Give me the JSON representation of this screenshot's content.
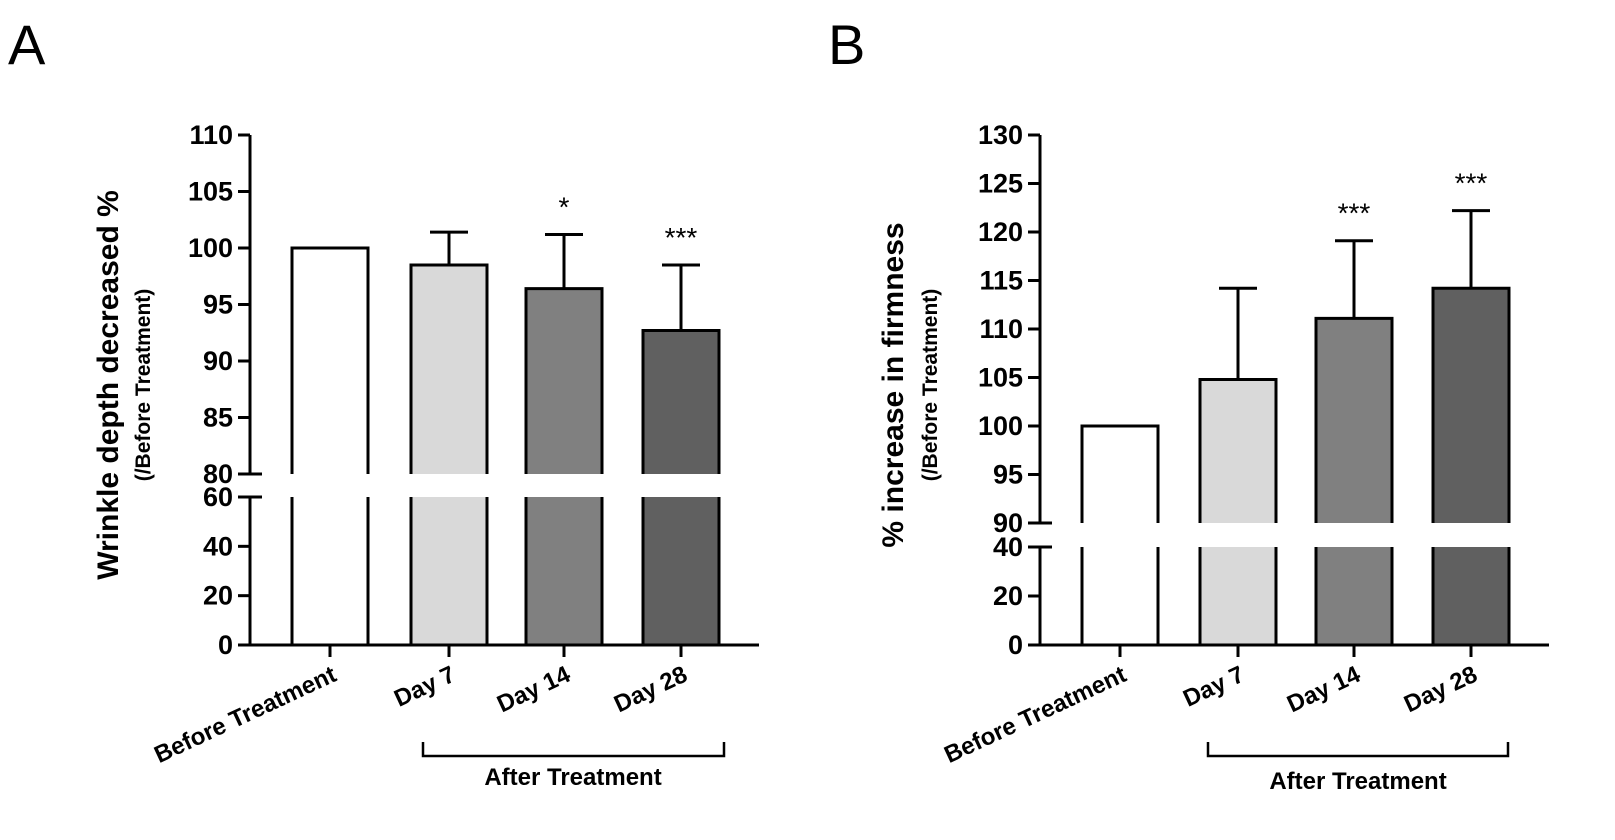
{
  "chart_data": [
    {
      "panel": "A",
      "type": "bar",
      "ylabel": "Wrinkle depth decreased %",
      "ylabel_sub": "(/Before Treatment)",
      "categories": [
        "Before Treatment",
        "Day 7",
        "Day 14",
        "Day 28"
      ],
      "values": [
        100,
        98.5,
        96.4,
        92.7
      ],
      "errors": [
        0,
        2.9,
        4.8,
        5.8
      ],
      "colors": [
        "#ffffff",
        "#d9d9d9",
        "#808080",
        "#606060"
      ],
      "significance": [
        "",
        "",
        "*",
        "***"
      ],
      "axis_break": {
        "lower": {
          "range": [
            0,
            60
          ],
          "ticks": [
            0,
            20,
            40,
            60
          ]
        },
        "upper": {
          "range": [
            80,
            110
          ],
          "ticks": [
            80,
            85,
            90,
            95,
            100,
            105,
            110
          ]
        }
      },
      "bracket_label": "After Treatment"
    },
    {
      "panel": "B",
      "type": "bar",
      "ylabel": "% increase in firmness",
      "ylabel_sub": "(/Before Treatment)",
      "categories": [
        "Before Treatment",
        "Day 7",
        "Day 14",
        "Day 28"
      ],
      "values": [
        100,
        104.8,
        111.1,
        114.2
      ],
      "errors": [
        0,
        9.4,
        8.0,
        8.0
      ],
      "colors": [
        "#ffffff",
        "#d9d9d9",
        "#808080",
        "#606060"
      ],
      "significance": [
        "",
        "",
        "***",
        "***"
      ],
      "axis_break": {
        "lower": {
          "range": [
            0,
            40
          ],
          "ticks": [
            0,
            20,
            40
          ]
        },
        "upper": {
          "range": [
            90,
            130
          ],
          "ticks": [
            90,
            95,
            100,
            105,
            110,
            115,
            120,
            125,
            130
          ]
        }
      },
      "bracket_label": "After Treatment"
    }
  ]
}
